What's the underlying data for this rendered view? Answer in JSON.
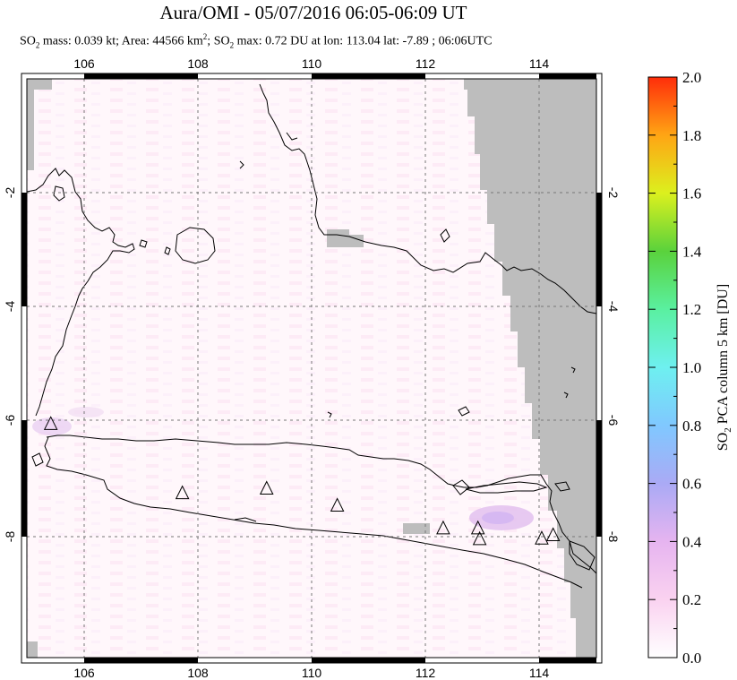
{
  "header": {
    "title": "Aura/OMI - 05/07/2016 06:05-06:09 UT",
    "stats": {
      "so2_prefix": "SO",
      "sub2": "2",
      "mass_text": " mass: 0.039 kt; Area: 44566 km",
      "sup2": "2",
      "sep": "; ",
      "max_text": " max: 0.72 DU at lon: 113.04 lat: -7.89 ; 06:06UTC"
    }
  },
  "map": {
    "lon_range": [
      105,
      115
    ],
    "lat_range": [
      -10.2,
      0
    ],
    "lon_ticks": [
      "106",
      "108",
      "110",
      "112",
      "114"
    ],
    "lat_ticks": [
      "-2",
      "-4",
      "-6",
      "-8"
    ],
    "volcano_markers": [
      {
        "lon": 105.42,
        "lat": -6.1
      },
      {
        "lon": 107.73,
        "lat": -7.32
      },
      {
        "lon": 109.21,
        "lat": -7.24
      },
      {
        "lon": 110.45,
        "lat": -7.54
      },
      {
        "lon": 112.31,
        "lat": -7.94
      },
      {
        "lon": 112.92,
        "lat": -7.94
      },
      {
        "lon": 112.95,
        "lat": -8.13
      },
      {
        "lon": 114.04,
        "lat": -8.12
      },
      {
        "lon": 114.24,
        "lat": -8.06
      }
    ],
    "colors": {
      "nodata": "#bdbdbd",
      "coast": "#000000",
      "grid": "#666666"
    }
  },
  "colorbar": {
    "title": "SO2 PCA column 5 km [DU]",
    "title_parts": {
      "a": "SO",
      "b": "2",
      "c": " PCA column 5 km [DU]"
    },
    "ticks": [
      "0.0",
      "0.2",
      "0.4",
      "0.6",
      "0.8",
      "1.0",
      "1.2",
      "1.4",
      "1.6",
      "1.8",
      "2.0"
    ],
    "range": [
      0,
      2
    ]
  }
}
